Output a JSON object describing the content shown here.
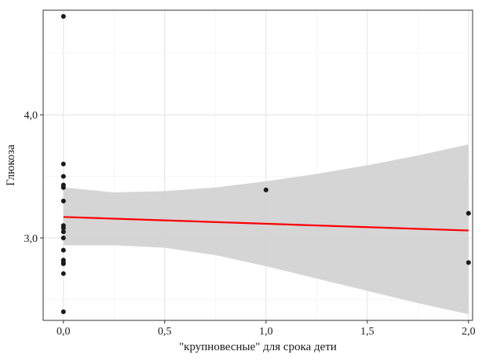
{
  "chart_data": {
    "type": "scatter",
    "xlabel": "\"крупновесные\" для срока дети",
    "ylabel": "Глюкоза",
    "xlim": [
      -0.1,
      2.02
    ],
    "ylim": [
      2.33,
      4.85
    ],
    "x_ticks": [
      0,
      0.5,
      1,
      1.5,
      2
    ],
    "x_tick_labels": [
      "0,0",
      "0,5",
      "1,0",
      "1,5",
      "2,0"
    ],
    "y_ticks": [
      3,
      4
    ],
    "y_tick_labels": [
      "3,0",
      "4,0"
    ],
    "grid": true,
    "points": [
      {
        "x": 0,
        "y": 4.8
      },
      {
        "x": 0,
        "y": 3.6
      },
      {
        "x": 0,
        "y": 3.5
      },
      {
        "x": 0,
        "y": 3.43
      },
      {
        "x": 0,
        "y": 3.41
      },
      {
        "x": 0,
        "y": 3.3
      },
      {
        "x": 0,
        "y": 3.1
      },
      {
        "x": 0,
        "y": 3.08
      },
      {
        "x": 0,
        "y": 3.05
      },
      {
        "x": 0,
        "y": 3.0
      },
      {
        "x": 0,
        "y": 2.9
      },
      {
        "x": 0,
        "y": 2.82
      },
      {
        "x": 0,
        "y": 2.8
      },
      {
        "x": 0,
        "y": 2.79
      },
      {
        "x": 0,
        "y": 2.71
      },
      {
        "x": 0,
        "y": 2.4
      },
      {
        "x": 1,
        "y": 3.39
      },
      {
        "x": 2,
        "y": 3.2
      },
      {
        "x": 2,
        "y": 2.8
      }
    ],
    "trend_line": {
      "x": [
        0,
        2
      ],
      "y": [
        3.17,
        3.06
      ],
      "color": "#ff0000"
    },
    "confidence_band": {
      "x": [
        0,
        0.25,
        0.5,
        0.75,
        1.0,
        1.25,
        1.5,
        1.75,
        2.0
      ],
      "upper": [
        3.41,
        3.37,
        3.38,
        3.41,
        3.46,
        3.52,
        3.59,
        3.67,
        3.76
      ],
      "lower": [
        2.94,
        2.94,
        2.92,
        2.86,
        2.77,
        2.67,
        2.57,
        2.47,
        2.38
      ],
      "color": "#d3d3d3"
    },
    "point_color": "#1a1a1a"
  }
}
